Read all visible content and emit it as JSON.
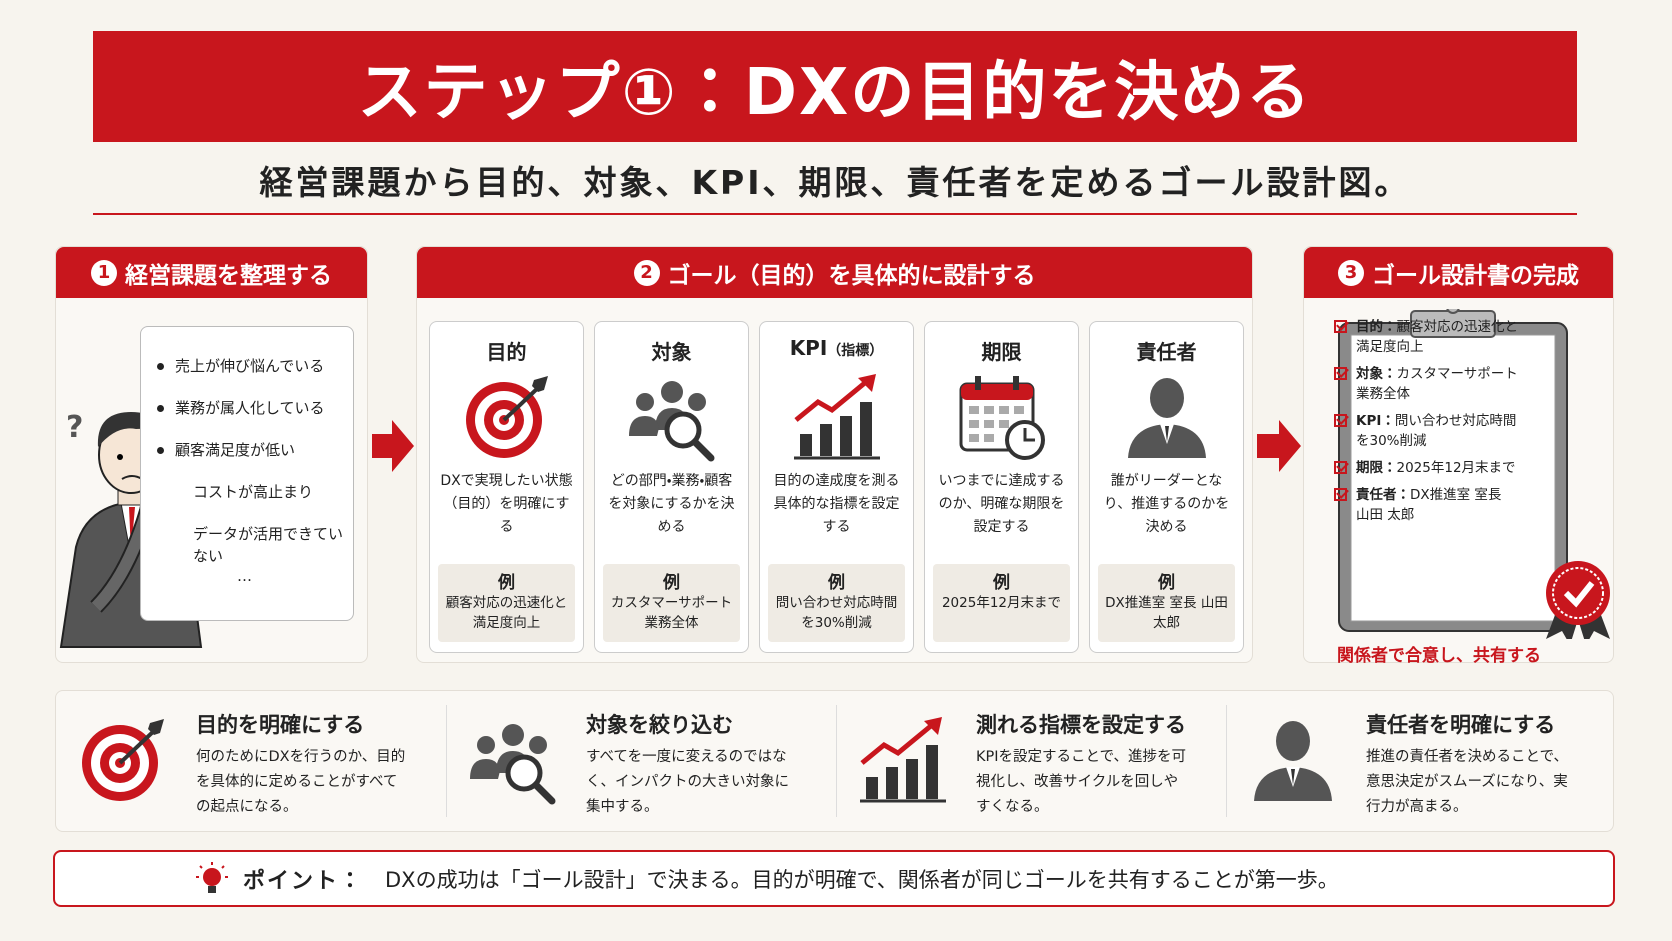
{
  "header": {
    "title": "ステップ①：DXの目的を決める",
    "subtitle": "経営課題から目的、対象、KPI、期限、責任者を定めるゴール設計図。"
  },
  "section1": {
    "number": "1",
    "title": "経営課題を整理する",
    "issues": [
      "売上が伸び悩んでいる",
      "業務が属人化している",
      "顧客満足度が低い",
      "コストが高止まり",
      "データが活用できていない",
      "…"
    ]
  },
  "section2": {
    "number": "2",
    "title": "ゴール（目的）を具体的に設計する",
    "cards": [
      {
        "title": "目的",
        "description": "DXで実現したい状態（目的）を明確にする",
        "example_label": "例",
        "example": "顧客対応の迅速化と満足度向上"
      },
      {
        "title": "対象",
        "description": "どの部門・業務・顧客を対象にするかを決める",
        "example_label": "例",
        "example": "カスタマーサポート業務全体"
      },
      {
        "title": "KPI",
        "title_note": "（指標）",
        "description": "目的の達成度を測る具体的な指標を設定する",
        "example_label": "例",
        "example": "問い合わせ対応時間を30%削減"
      },
      {
        "title": "期限",
        "description": "いつまでに達成するのか、明確な期限を設定する",
        "example_label": "例",
        "example": "2025年12月末まで"
      },
      {
        "title": "責任者",
        "description": "誰がリーダーとなり、推進するのかを決める",
        "example_label": "例",
        "example": "DX推進室 室長 山田 太郎"
      }
    ]
  },
  "section3": {
    "number": "3",
    "title": "ゴール設計書の完成",
    "checklist": [
      {
        "label": "目的：",
        "text": "顧客対応の迅速化と満足度向上"
      },
      {
        "label": "対象：",
        "text": "カスタマーサポート業務全体"
      },
      {
        "label": "KPI：",
        "text": "問い合わせ対応時間を30%削減"
      },
      {
        "label": "期限：",
        "text": "2025年12月末まで"
      },
      {
        "label": "責任者：",
        "text": "DX推進室 室長 山田 太郎"
      }
    ],
    "caption": "関係者で合意し、共有する"
  },
  "summary": [
    {
      "title": "目的を明確にする",
      "text": "何のためにDXを行うのか、目的を具体的に定めることがすべての起点になる。"
    },
    {
      "title": "対象を絞り込む",
      "text": "すべてを一度に変えるのではなく、インパクトの大きい対象に集中する。"
    },
    {
      "title": "測れる指標を設定する",
      "text": "KPIを設定することで、進捗を可視化し、改善サイクルを回しやすくなる。"
    },
    {
      "title": "責任者を明確にする",
      "text": "推進の責任者を決めることで、意思決定がスムーズになり、実行力が高まる。"
    }
  ],
  "point": {
    "label": "ポイント：",
    "text": "DXの成功は「ゴール設計」で決まる。目的が明確で、関係者が同じゴールを共有することが第一歩。"
  }
}
